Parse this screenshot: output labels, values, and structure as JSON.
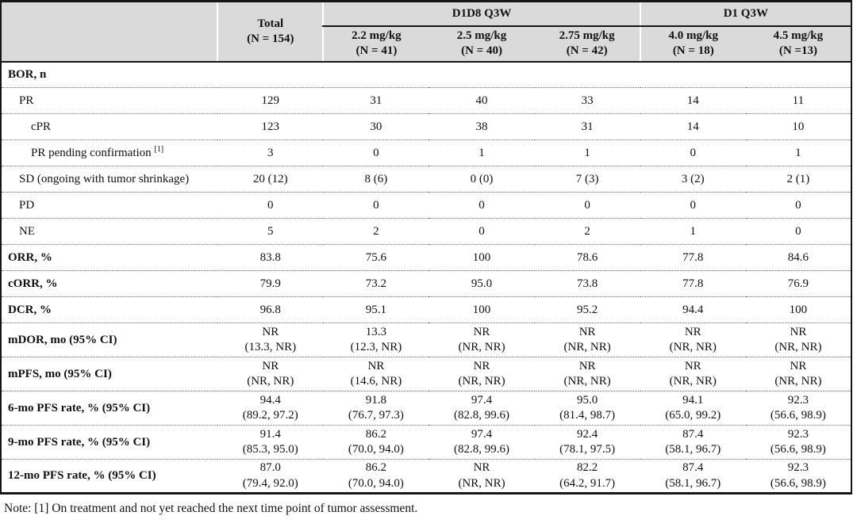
{
  "header": {
    "total": {
      "line1": "Total",
      "line2": "(N = 154)"
    },
    "groups": [
      {
        "label": "D1D8 Q3W"
      },
      {
        "label": "D1 Q3W"
      }
    ],
    "doses": [
      {
        "line1": "2.2 mg/kg",
        "line2": "(N = 41)"
      },
      {
        "line1": "2.5 mg/kg",
        "line2": "(N = 40)"
      },
      {
        "line1": "2.75 mg/kg",
        "line2": "(N = 42)"
      },
      {
        "line1": "4.0 mg/kg",
        "line2": "(N = 18)"
      },
      {
        "line1": "4.5 mg/kg",
        "line2": "(N =13)"
      }
    ]
  },
  "rows": [
    {
      "label": "BOR, n",
      "values": [
        "",
        "",
        "",
        "",
        "",
        ""
      ]
    },
    {
      "label": "PR",
      "values": [
        "129",
        "31",
        "40",
        "33",
        "14",
        "11"
      ]
    },
    {
      "label": "cPR",
      "values": [
        "123",
        "30",
        "38",
        "31",
        "14",
        "10"
      ]
    },
    {
      "label": "PR pending confirmation",
      "sup": "[1]",
      "values": [
        "3",
        "0",
        "1",
        "1",
        "0",
        "1"
      ]
    },
    {
      "label": "SD (ongoing with tumor shrinkage)",
      "values": [
        "20 (12)",
        "8 (6)",
        "0 (0)",
        "7 (3)",
        "3 (2)",
        "2 (1)"
      ]
    },
    {
      "label": "PD",
      "values": [
        "0",
        "0",
        "0",
        "0",
        "0",
        "0"
      ]
    },
    {
      "label": "NE",
      "values": [
        "5",
        "2",
        "0",
        "2",
        "1",
        "0"
      ]
    },
    {
      "label": "ORR, %",
      "values": [
        "83.8",
        "75.6",
        "100",
        "78.6",
        "77.8",
        "84.6"
      ]
    },
    {
      "label": "cORR, %",
      "values": [
        "79.9",
        "73.2",
        "95.0",
        "73.8",
        "77.8",
        "76.9"
      ]
    },
    {
      "label": "DCR, %",
      "values": [
        "96.8",
        "95.1",
        "100",
        "95.2",
        "94.4",
        "100"
      ]
    },
    {
      "label": "mDOR, mo (95% CI)",
      "values": [
        [
          "NR",
          "(13.3, NR)"
        ],
        [
          "13.3",
          "(12.3, NR)"
        ],
        [
          "NR",
          "(NR, NR)"
        ],
        [
          "NR",
          "(NR, NR)"
        ],
        [
          "NR",
          "(NR, NR)"
        ],
        [
          "NR",
          "(NR, NR)"
        ]
      ]
    },
    {
      "label": "mPFS, mo (95% CI)",
      "values": [
        [
          "NR",
          "(NR, NR)"
        ],
        [
          "NR",
          "(14.6, NR)"
        ],
        [
          "NR",
          "(NR, NR)"
        ],
        [
          "NR",
          "(NR, NR)"
        ],
        [
          "NR",
          "(NR, NR)"
        ],
        [
          "NR",
          "(NR, NR)"
        ]
      ]
    },
    {
      "label": "6-mo PFS rate, % (95% CI)",
      "values": [
        [
          "94.4",
          "(89.2, 97.2)"
        ],
        [
          "91.8",
          "(76.7, 97.3)"
        ],
        [
          "97.4",
          "(82.8, 99.6)"
        ],
        [
          "95.0",
          "(81.4, 98.7)"
        ],
        [
          "94.1",
          "(65.0, 99.2)"
        ],
        [
          "92.3",
          "(56.6, 98.9)"
        ]
      ]
    },
    {
      "label": "9-mo PFS rate, % (95% CI)",
      "values": [
        [
          "91.4",
          "(85.3, 95.0)"
        ],
        [
          "86.2",
          "(70.0, 94.0)"
        ],
        [
          "97.4",
          "(82.8, 99.6)"
        ],
        [
          "92.4",
          "(78.1, 97.5)"
        ],
        [
          "87.4",
          "(58.1, 96.7)"
        ],
        [
          "92.3",
          "(56.6, 98.9)"
        ]
      ]
    },
    {
      "label": "12-mo PFS rate, % (95% CI)",
      "values": [
        [
          "87.0",
          "(79.4, 92.0)"
        ],
        [
          "86.2",
          "(70.0, 94.0)"
        ],
        [
          "NR",
          "(NR, NR)"
        ],
        [
          "82.2",
          "(64.2, 91.7)"
        ],
        [
          "87.4",
          "(58.1, 96.7)"
        ],
        [
          "92.3",
          "(56.6, 98.9)"
        ]
      ]
    }
  ],
  "note": "Note: [1] On treatment and not yet reached the next time point of tumor assessment."
}
